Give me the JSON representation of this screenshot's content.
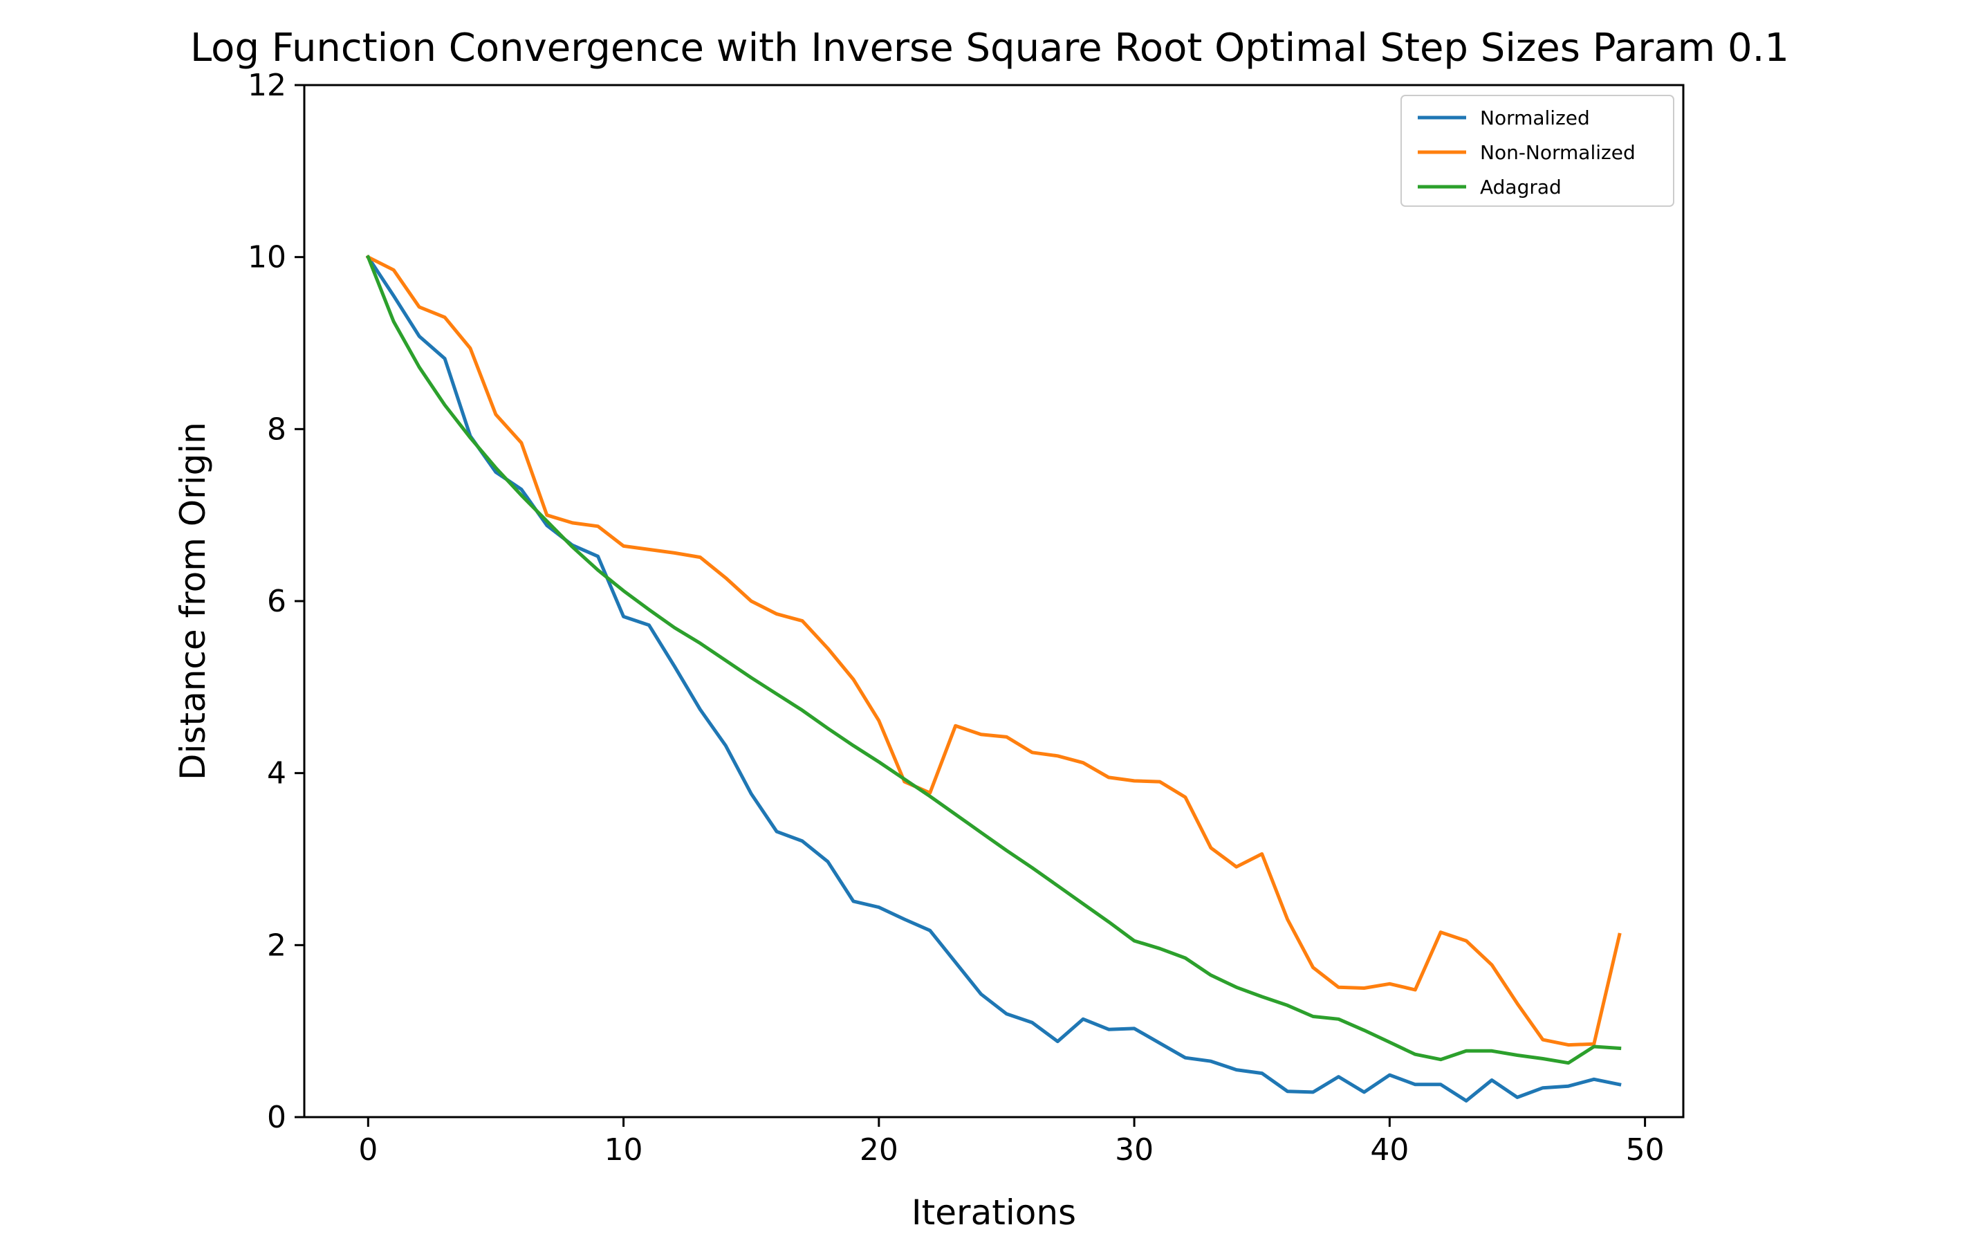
{
  "chart_data": {
    "type": "line",
    "title": "Log Function Convergence with Inverse Square Root Optimal Step Sizes Param 0.1",
    "xlabel": "Iterations",
    "ylabel": "Distance from Origin",
    "xlim": [
      -2.5,
      51.5
    ],
    "ylim": [
      0,
      12
    ],
    "xticks": [
      0,
      10,
      20,
      30,
      40,
      50
    ],
    "yticks": [
      0,
      2,
      4,
      6,
      8,
      10,
      12
    ],
    "grid": false,
    "legend_position": "top-right",
    "x": [
      0,
      1,
      2,
      3,
      4,
      5,
      6,
      7,
      8,
      9,
      10,
      11,
      12,
      13,
      14,
      15,
      16,
      17,
      18,
      19,
      20,
      21,
      22,
      23,
      24,
      25,
      26,
      27,
      28,
      29,
      30,
      31,
      32,
      33,
      34,
      35,
      36,
      37,
      38,
      39,
      40,
      41,
      42,
      43,
      44,
      45,
      46,
      47,
      48,
      49
    ],
    "series": [
      {
        "name": "Normalized",
        "color": "#1f77b4",
        "values": [
          10.0,
          9.55,
          9.08,
          8.82,
          7.92,
          7.5,
          7.3,
          6.88,
          6.65,
          6.52,
          5.82,
          5.72,
          5.24,
          4.74,
          4.32,
          3.76,
          3.32,
          3.21,
          2.97,
          2.51,
          2.44,
          2.3,
          2.17,
          1.8,
          1.43,
          1.2,
          1.1,
          0.88,
          1.14,
          1.02,
          1.03,
          0.86,
          0.69,
          0.65,
          0.55,
          0.51,
          0.3,
          0.29,
          0.47,
          0.29,
          0.49,
          0.38,
          0.38,
          0.19,
          0.43,
          0.23,
          0.34,
          0.36,
          0.44,
          0.38
        ]
      },
      {
        "name": "Non-Normalized",
        "color": "#ff7f0e",
        "values": [
          10.0,
          9.85,
          9.42,
          9.3,
          8.94,
          8.17,
          7.84,
          7.0,
          6.91,
          6.87,
          6.64,
          6.6,
          6.56,
          6.51,
          6.27,
          6.0,
          5.85,
          5.77,
          5.45,
          5.09,
          4.61,
          3.9,
          3.77,
          4.55,
          4.45,
          4.42,
          4.24,
          4.2,
          4.12,
          3.95,
          3.91,
          3.9,
          3.72,
          3.13,
          2.91,
          3.06,
          2.3,
          1.74,
          1.51,
          1.5,
          1.55,
          1.48,
          2.15,
          2.05,
          1.77,
          1.32,
          0.9,
          0.84,
          0.85,
          2.12
        ]
      },
      {
        "name": "Adagrad",
        "color": "#2ca02c",
        "values": [
          10.0,
          9.25,
          8.72,
          8.28,
          7.9,
          7.55,
          7.23,
          6.93,
          6.63,
          6.36,
          6.12,
          5.9,
          5.69,
          5.51,
          5.31,
          5.11,
          4.92,
          4.73,
          4.52,
          4.32,
          4.13,
          3.93,
          3.73,
          3.52,
          3.31,
          3.1,
          2.9,
          2.69,
          2.48,
          2.27,
          2.05,
          1.96,
          1.85,
          1.65,
          1.51,
          1.4,
          1.3,
          1.17,
          1.14,
          1.01,
          0.87,
          0.73,
          0.67,
          0.77,
          0.77,
          0.72,
          0.68,
          0.63,
          0.82,
          0.8
        ]
      }
    ]
  }
}
